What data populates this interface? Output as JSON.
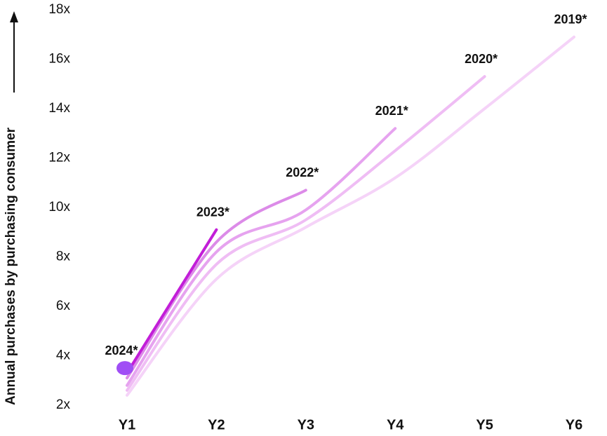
{
  "chart_data": {
    "type": "line",
    "y_label": "Annual purchases by purchasing consumer",
    "categories": [
      "Y1",
      "Y2",
      "Y3",
      "Y4",
      "Y5",
      "Y6"
    ],
    "ylim": [
      2,
      18
    ],
    "yticks": [
      {
        "value": 2,
        "label": "2x"
      },
      {
        "value": 4,
        "label": "4x"
      },
      {
        "value": 6,
        "label": "6x"
      },
      {
        "value": 8,
        "label": "8x"
      },
      {
        "value": 10,
        "label": "10x"
      },
      {
        "value": 12,
        "label": "12x"
      },
      {
        "value": 14,
        "label": "14x"
      },
      {
        "value": 16,
        "label": "16x"
      },
      {
        "value": 18,
        "label": "18x"
      }
    ],
    "series": [
      {
        "name": "2019*",
        "color": "#f5d3f8",
        "values": [
          2.4,
          7.1,
          9.2,
          11.2,
          14.0,
          16.9
        ]
      },
      {
        "name": "2020*",
        "color": "#efbdf4",
        "values": [
          2.6,
          7.7,
          9.5,
          12.3,
          15.3,
          null
        ]
      },
      {
        "name": "2021*",
        "color": "#e6a3ef",
        "values": [
          2.8,
          8.2,
          9.9,
          13.2,
          null,
          null
        ]
      },
      {
        "name": "2022*",
        "color": "#dc8be8",
        "values": [
          3.1,
          8.6,
          10.7,
          null,
          null,
          null
        ]
      },
      {
        "name": "2023*",
        "color": "#c21ed8",
        "values": [
          3.3,
          9.1,
          null,
          null,
          null,
          null
        ]
      },
      {
        "name": "2024*",
        "color": "#a04ef5",
        "values": [
          3.5,
          null,
          null,
          null,
          null,
          null
        ]
      }
    ]
  }
}
